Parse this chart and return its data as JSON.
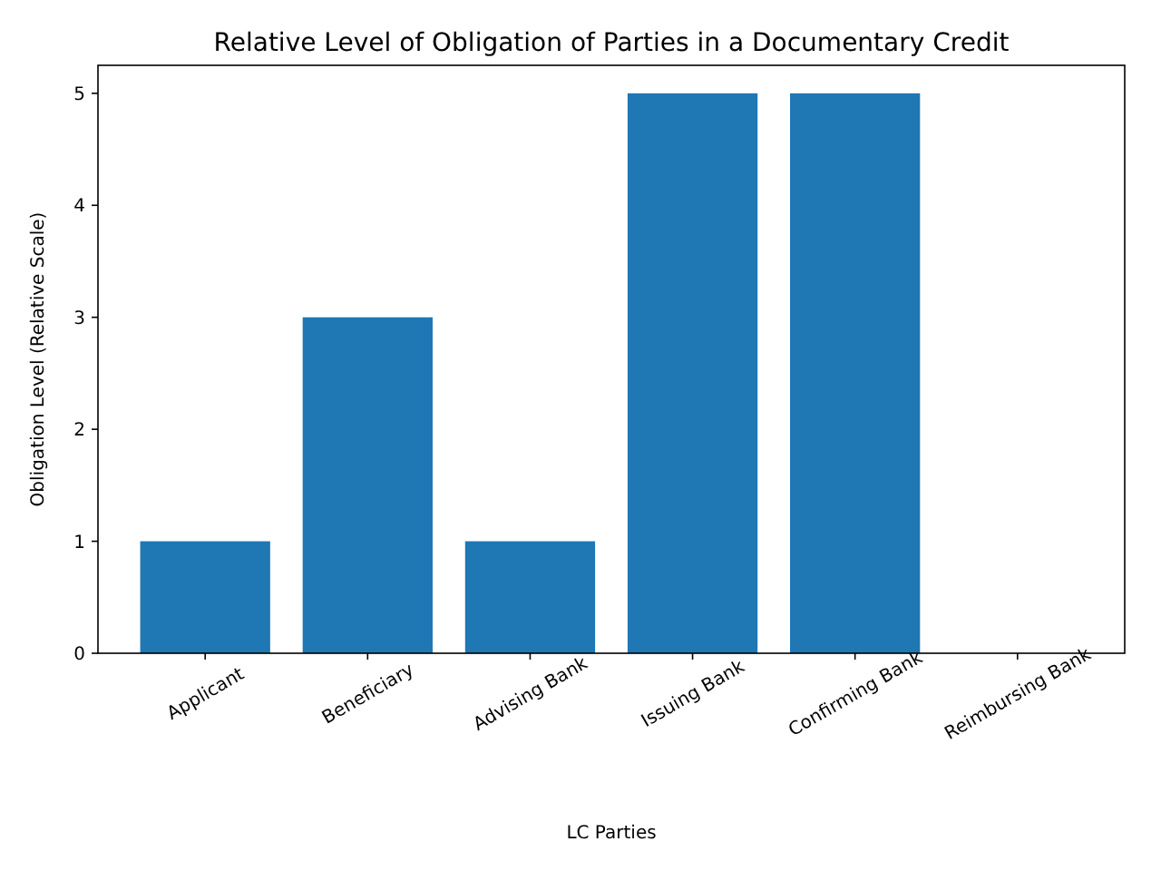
{
  "chart_data": {
    "type": "bar",
    "title": "Relative Level of Obligation of Parties in a Documentary Credit",
    "xlabel": "LC Parties",
    "ylabel": "Obligation Level (Relative Scale)",
    "categories": [
      "Applicant",
      "Beneficiary",
      "Advising Bank",
      "Issuing Bank",
      "Confirming Bank",
      "Reimbursing Bank"
    ],
    "values": [
      1,
      3,
      1,
      5,
      5,
      0
    ],
    "color": "#1f77b4",
    "ylim": [
      0,
      5.25
    ],
    "yticks": [
      0,
      1,
      2,
      3,
      4,
      5
    ],
    "grid": false
  }
}
